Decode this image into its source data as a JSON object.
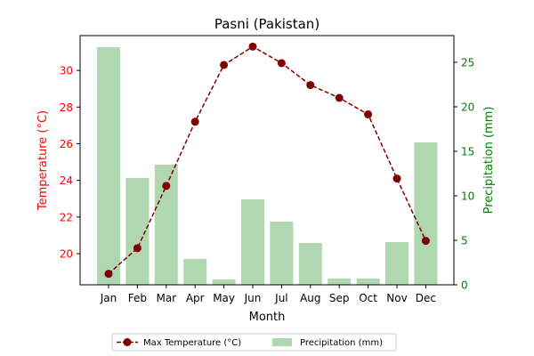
{
  "chart_data": {
    "type": "bar+line",
    "title": "Pasni (Pakistan)",
    "xlabel": "Month",
    "categories": [
      "Jan",
      "Feb",
      "Mar",
      "Apr",
      "May",
      "Jun",
      "Jul",
      "Aug",
      "Sep",
      "Oct",
      "Nov",
      "Dec"
    ],
    "left_axis": {
      "label": "Temperature (°C)",
      "ylim": [
        18.3,
        31.9
      ],
      "ticks": [
        20,
        22,
        24,
        26,
        28,
        30
      ],
      "color": "#ff0000"
    },
    "right_axis": {
      "label": "Precipitation (mm)",
      "ylim": [
        0,
        28
      ],
      "ticks": [
        0,
        5,
        10,
        15,
        20,
        25
      ],
      "color": "#008000"
    },
    "series": [
      {
        "name": "Max Temperature (°C)",
        "type": "line",
        "axis": "left",
        "color": "#800000",
        "style": "dashed",
        "marker": "circle",
        "values": [
          18.9,
          20.3,
          23.7,
          27.2,
          30.3,
          31.3,
          30.4,
          29.2,
          28.5,
          27.6,
          24.1,
          20.7
        ]
      },
      {
        "name": "Precipitation (mm)",
        "type": "bar",
        "axis": "right",
        "color": "#b0d8b0",
        "values": [
          26.7,
          12.0,
          13.5,
          2.9,
          0.6,
          9.6,
          7.1,
          4.7,
          0.7,
          0.7,
          4.8,
          16.0
        ]
      }
    ],
    "legend": {
      "placement": "bottom-center",
      "columns": 2
    }
  }
}
